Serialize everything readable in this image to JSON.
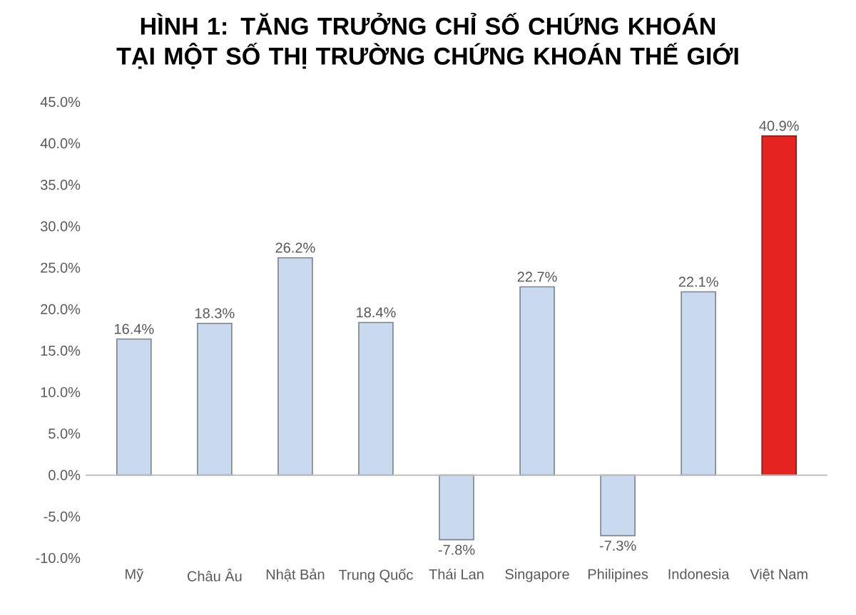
{
  "chart_data": {
    "type": "bar",
    "title": "HÌNH 1: TĂNG TRƯỞNG CHỈ SỐ CHỨNG KHOÁN TẠI MỘT SỐ THỊ TRƯỜNG CHỨNG KHOÁN THẾ GIỚI",
    "categories": [
      "Mỹ",
      "Châu Âu",
      "Nhật Bản",
      "Trung Quốc",
      "Thái Lan",
      "Singapore",
      "Philipines",
      "Indonesia",
      "Việt Nam"
    ],
    "values": [
      16.4,
      18.3,
      26.2,
      18.4,
      -7.8,
      22.7,
      -7.3,
      22.1,
      40.9
    ],
    "value_labels": [
      "16.4%",
      "18.3%",
      "26.2%",
      "18.4%",
      "-7.8%",
      "22.7%",
      "-7.3%",
      "22.1%",
      "40.9%"
    ],
    "colors": [
      "#c9d9ee",
      "#c9d9ee",
      "#c9d9ee",
      "#c9d9ee",
      "#c9d9ee",
      "#c9d9ee",
      "#c9d9ee",
      "#c9d9ee",
      "#e52421"
    ],
    "ylim": [
      -10,
      45
    ],
    "ref_lines": [
      {
        "axis": "y",
        "value": 0,
        "color": "#bfbfbf"
      }
    ],
    "yticks": [
      {
        "value": -10,
        "label": "-10.0%"
      },
      {
        "value": -5,
        "label": "-5.0%"
      },
      {
        "value": 0,
        "label": "0.0%"
      },
      {
        "value": 5,
        "label": "5.0%"
      },
      {
        "value": 10,
        "label": "10.0%"
      },
      {
        "value": 15,
        "label": "15.0%"
      },
      {
        "value": 20,
        "label": "20.0%"
      },
      {
        "value": 25,
        "label": "25.0%"
      },
      {
        "value": 30,
        "label": "30.0%"
      },
      {
        "value": 35,
        "label": "35.0%"
      },
      {
        "value": 40,
        "label": "40.0%"
      },
      {
        "value": 45,
        "label": "45.0%"
      }
    ],
    "grid": false
  }
}
